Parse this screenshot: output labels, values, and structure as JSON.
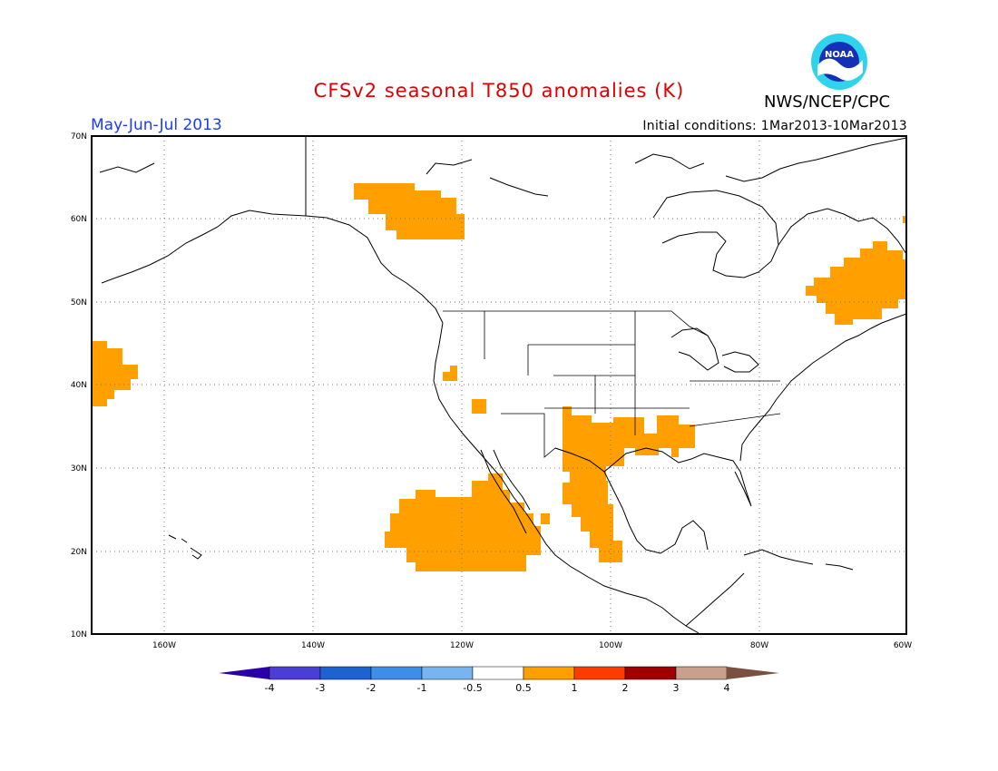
{
  "title": "CFSv2 seasonal T850 anomalies (K)",
  "agency": "NWS/NCEP/CPC",
  "logo_text": "NOAA",
  "period": "May-Jun-Jul 2013",
  "initial_conditions": "Initial conditions: 1Mar2013-10Mar2013",
  "map": {
    "lon_range": [
      -174,
      -60
    ],
    "lat_range": [
      10,
      70
    ],
    "lat_ticks": [
      "10N",
      "20N",
      "30N",
      "40N",
      "50N",
      "60N",
      "70N"
    ],
    "lon_ticks": [
      "160W",
      "140W",
      "120W",
      "100W",
      "80W",
      "60W"
    ],
    "grid": true,
    "anomaly_color": "#ff9f00"
  },
  "colorbar": {
    "labels": [
      "-4",
      "-3",
      "-2",
      "-1",
      "-0.5",
      "0.5",
      "1",
      "2",
      "3",
      "4"
    ],
    "colors": [
      "#2a00a8",
      "#4b3ed6",
      "#1e62d2",
      "#3d8ee8",
      "#78b4f0",
      "#ffffff",
      "#ff9f00",
      "#ff3c00",
      "#a00000",
      "#c8a08c",
      "#7a5040"
    ]
  }
}
